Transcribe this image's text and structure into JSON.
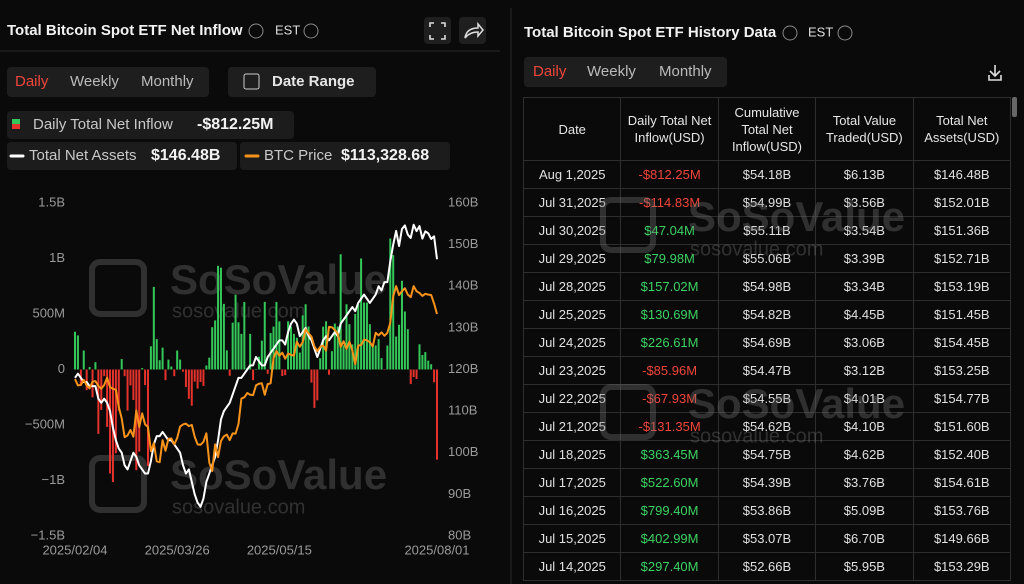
{
  "chart_data": {
    "type": "combo",
    "title": "Total Bitcoin Spot ETF Net Inflow",
    "timezone": "EST",
    "tabs": [
      "Daily",
      "Weekly",
      "Monthly"
    ],
    "date_range": "Date Range",
    "watermark": "SoSoValue",
    "watermark_url": "sosovalue.com",
    "grid": false,
    "categories": [
      "2025/02/04",
      null,
      null,
      null,
      null,
      null,
      null,
      null,
      null,
      null,
      null,
      null,
      null,
      null,
      null,
      null,
      null,
      null,
      null,
      null,
      null,
      null,
      null,
      null,
      null,
      null,
      null,
      null,
      null,
      null,
      null,
      null,
      null,
      null,
      null,
      "2025/03/26",
      null,
      null,
      null,
      null,
      null,
      null,
      null,
      null,
      null,
      null,
      null,
      null,
      null,
      null,
      null,
      null,
      null,
      null,
      null,
      null,
      null,
      null,
      null,
      null,
      null,
      null,
      null,
      null,
      null,
      null,
      null,
      null,
      null,
      null,
      "2025/05/15",
      null,
      null,
      null,
      null,
      null,
      null,
      null,
      null,
      null,
      null,
      null,
      null,
      null,
      null,
      null,
      null,
      null,
      null,
      null,
      null,
      null,
      null,
      null,
      null,
      null,
      null,
      null,
      null,
      null,
      null,
      null,
      null,
      null,
      null,
      null,
      null,
      null,
      null,
      null,
      null,
      null,
      null,
      null,
      null,
      null,
      null,
      null,
      null,
      null,
      null,
      null,
      null,
      null,
      "2025/08/01"
    ],
    "ylim": [
      -1500,
      1500
    ],
    "yticks": [
      {
        "value": 1500,
        "label": "1.5B"
      },
      {
        "value": 1000,
        "label": "1B"
      },
      {
        "value": 500,
        "label": "500M"
      },
      0,
      {
        "value": -500,
        "label": "−500M"
      },
      {
        "value": -1000,
        "label": "−1B"
      },
      {
        "value": -1500,
        "label": "−1.5B"
      }
    ],
    "y2lim": [
      80,
      160
    ],
    "y2ticks": [
      {
        "value": 80,
        "label": "80B"
      },
      {
        "value": 90,
        "label": "90B"
      },
      {
        "value": 100,
        "label": "100B"
      },
      {
        "value": 110,
        "label": "110B"
      },
      {
        "value": 120,
        "label": "120B"
      },
      {
        "value": 130,
        "label": "130B"
      },
      {
        "value": 140,
        "label": "140B"
      },
      {
        "value": 150,
        "label": "150B"
      },
      {
        "value": 160,
        "label": "160B"
      }
    ],
    "y3lim": [
      61000,
      139500
    ],
    "series": [
      {
        "name": "Daily Total Net Inflow",
        "type": "bar",
        "color": "#34c759",
        "negative_color": "#e5322d",
        "legend_label": "-$812.25M",
        "values": [
          340,
          307,
          -140,
          171,
          -186,
          22,
          -251,
          66,
          -580,
          -364,
          -60,
          -517,
          -937,
          -1014,
          -754,
          -372,
          94,
          -60,
          -370,
          -143,
          -275,
          -907,
          -740,
          13,
          -140,
          -870,
          209,
          744,
          274,
          84,
          197,
          -96,
          89,
          27,
          -60,
          171,
          89,
          -20,
          -157,
          -264,
          -326,
          -109,
          -172,
          -113,
          -148,
          36,
          107,
          381,
          442,
          934,
          917,
          591,
          173,
          -57,
          422,
          674,
          425,
          321,
          608,
          13,
          321,
          -96,
          5,
          115,
          260,
          609,
          -39,
          329,
          386,
          608,
          433,
          -59,
          -51,
          434,
          386,
          321,
          286,
          153,
          487,
          588,
          388,
          -118,
          -346,
          -278,
          101,
          386,
          434,
          -47,
          165,
          414,
          388,
          1038,
          217,
          588,
          408,
          226,
          501,
          588,
          1000,
          603,
          603,
          408,
          226,
          217,
          273,
          102,
          -5,
          216,
          1180,
          1030,
          297.4,
          402.99,
          799.4,
          522.6,
          363.45,
          -131.35,
          -67.93,
          -85.96,
          226.61,
          130.69,
          157.02,
          79.98,
          47.04,
          -114.83,
          -812.25
        ]
      },
      {
        "name": "Total Net Assets",
        "type": "line",
        "axis": "y2",
        "color": "#ffffff",
        "legend_label": "$146.48B",
        "values": [
          118,
          119,
          118,
          117,
          117,
          116,
          116,
          116,
          113,
          112,
          113,
          112,
          110,
          106,
          103,
          101,
          100,
          97,
          96,
          98,
          100,
          99,
          97,
          96,
          95,
          95,
          98,
          102,
          104,
          104,
          105,
          104,
          103,
          103,
          102,
          101,
          100,
          97,
          95,
          96,
          93,
          90,
          88,
          87,
          89,
          93,
          95,
          97,
          99,
          103,
          108,
          110,
          111,
          112,
          114,
          116,
          118,
          118,
          119,
          120,
          121,
          121,
          123,
          122,
          121,
          121,
          123,
          124,
          125,
          126,
          127,
          127,
          126,
          129,
          131,
          132,
          131,
          128,
          129,
          130,
          128,
          127,
          125,
          123,
          125,
          127,
          128,
          127,
          128,
          129,
          128,
          131,
          132,
          133,
          134,
          135,
          134,
          136,
          137,
          138,
          137,
          136,
          137,
          138,
          140,
          139,
          141,
          141,
          146,
          150,
          153.29,
          149.66,
          153.76,
          154.61,
          152.4,
          151.6,
          154.77,
          153.25,
          154.45,
          151.45,
          153.19,
          152.71,
          151.36,
          152.01,
          146.48
        ]
      },
      {
        "name": "BTC Price",
        "type": "line",
        "axis": "y3",
        "color": "#f7931a",
        "legend_label": "$113,328.68",
        "values": [
          98000,
          96500,
          96600,
          97800,
          96500,
          95800,
          97400,
          97500,
          96400,
          95700,
          96600,
          98300,
          96100,
          95700,
          95500,
          91400,
          88700,
          84300,
          84700,
          86000,
          84400,
          90600,
          86700,
          89900,
          87300,
          86700,
          81000,
          82900,
          78600,
          78400,
          83600,
          81100,
          83900,
          84000,
          82600,
          84100,
          86800,
          87300,
          87500,
          86900,
          87200,
          84400,
          82600,
          82500,
          83200,
          85200,
          78300,
          76300,
          82600,
          79600,
          83400,
          84500,
          84900,
          83600,
          85200,
          85100,
          87400,
          93400,
          93700,
          94700,
          94300,
          94200,
          96500,
          96900,
          97000,
          94300,
          96800,
          97000,
          102900,
          104600,
          103500,
          104200,
          102800,
          104000,
          103700,
          103500,
          106800,
          105600,
          106700,
          109700,
          108800,
          108000,
          105700,
          104600,
          105600,
          105900,
          104700,
          110300,
          110200,
          109600,
          108700,
          105600,
          106900,
          105100,
          106800,
          104700,
          101500,
          105900,
          106000,
          107300,
          107100,
          106700,
          105700,
          108900,
          108300,
          109000,
          108200,
          108900,
          111300,
          117500,
          119900,
          117800,
          118700,
          119400,
          117900,
          117300,
          119900,
          118700,
          118300,
          117600,
          118100,
          117900,
          117800,
          115800,
          113328.68
        ]
      }
    ]
  },
  "history": {
    "title": "Total Bitcoin Spot ETF History Data",
    "timezone": "EST",
    "tabs": [
      "Daily",
      "Weekly",
      "Monthly"
    ],
    "table": {
      "columns": [
        "Date",
        "Daily Total Net Inflow(USD)",
        "Cumulative Total Net Inflow(USD)",
        "Total Value Traded(USD)",
        "Total Net Assets(USD)"
      ],
      "rows": [
        [
          "Aug 1,2025",
          "-$812.25M",
          "$54.18B",
          "$6.13B",
          "$146.48B"
        ],
        [
          "Jul 31,2025",
          "-$114.83M",
          "$54.99B",
          "$3.56B",
          "$152.01B"
        ],
        [
          "Jul 30,2025",
          "$47.04M",
          "$55.11B",
          "$3.54B",
          "$151.36B"
        ],
        [
          "Jul 29,2025",
          "$79.98M",
          "$55.06B",
          "$3.39B",
          "$152.71B"
        ],
        [
          "Jul 28,2025",
          "$157.02M",
          "$54.98B",
          "$3.34B",
          "$153.19B"
        ],
        [
          "Jul 25,2025",
          "$130.69M",
          "$54.82B",
          "$4.45B",
          "$151.45B"
        ],
        [
          "Jul 24,2025",
          "$226.61M",
          "$54.69B",
          "$3.06B",
          "$154.45B"
        ],
        [
          "Jul 23,2025",
          "-$85.96M",
          "$54.47B",
          "$3.12B",
          "$153.25B"
        ],
        [
          "Jul 22,2025",
          "-$67.93M",
          "$54.55B",
          "$4.01B",
          "$154.77B"
        ],
        [
          "Jul 21,2025",
          "-$131.35M",
          "$54.62B",
          "$4.10B",
          "$151.60B"
        ],
        [
          "Jul 18,2025",
          "$363.45M",
          "$54.75B",
          "$4.62B",
          "$152.40B"
        ],
        [
          "Jul 17,2025",
          "$522.60M",
          "$54.39B",
          "$3.76B",
          "$154.61B"
        ],
        [
          "Jul 16,2025",
          "$799.40M",
          "$53.86B",
          "$5.09B",
          "$153.76B"
        ],
        [
          "Jul 15,2025",
          "$402.99M",
          "$53.07B",
          "$6.70B",
          "$149.66B"
        ],
        [
          "Jul 14,2025",
          "$297.40M",
          "$52.66B",
          "$5.95B",
          "$153.29B"
        ]
      ]
    }
  }
}
